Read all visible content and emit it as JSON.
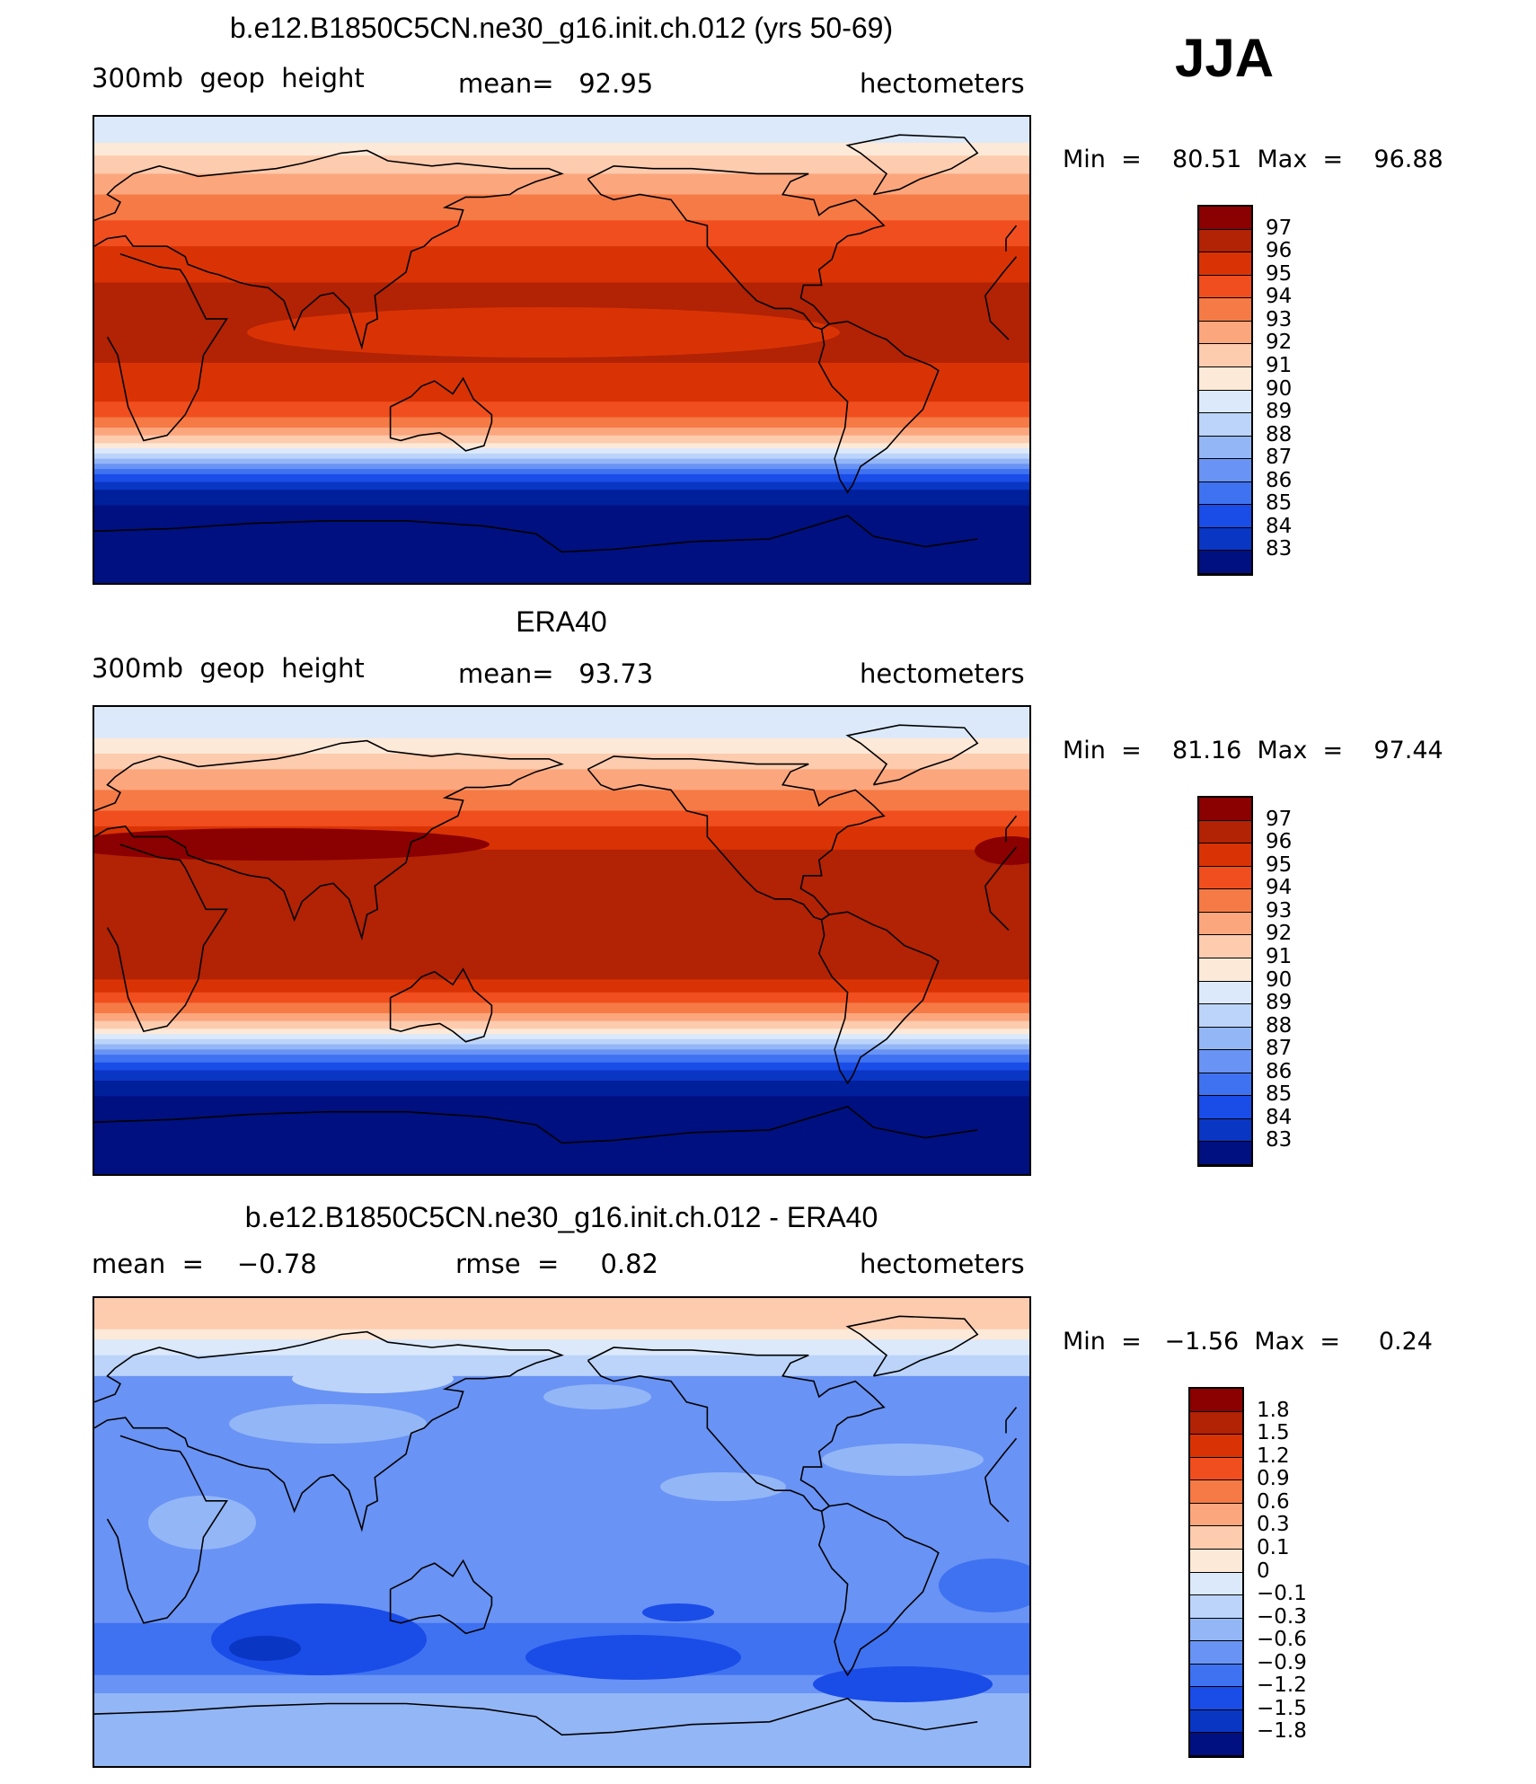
{
  "season": "JJA",
  "panels": [
    {
      "title": "b.e12.B1850C5CN.ne30_g16.init.ch.012 (yrs 50-69)",
      "left_text": "300mb  geop  height",
      "center_text": "mean=   92.95",
      "right_text": "hectometers",
      "minmax": "Min  =    80.51  Max  =    96.88",
      "legend_labels": [
        "97",
        "96",
        "95",
        "94",
        "93",
        "92",
        "91",
        "90",
        "89",
        "88",
        "87",
        "86",
        "85",
        "84",
        "83"
      ]
    },
    {
      "title": "ERA40",
      "left_text": "300mb  geop  height",
      "center_text": "mean=   93.73",
      "right_text": "hectometers",
      "minmax": "Min  =    81.16  Max  =    97.44",
      "legend_labels": [
        "97",
        "96",
        "95",
        "94",
        "93",
        "92",
        "91",
        "90",
        "89",
        "88",
        "87",
        "86",
        "85",
        "84",
        "83"
      ]
    },
    {
      "title": "b.e12.B1850C5CN.ne30_g16.init.ch.012 - ERA40",
      "left_text": "mean  =    −0.78",
      "center_text": "rmse  =     0.82",
      "right_text": "hectometers",
      "minmax": "Min  =   −1.56  Max  =     0.24",
      "legend_labels": [
        "1.8",
        "1.5",
        "1.2",
        "0.9",
        "0.6",
        "0.3",
        "0.1",
        "0",
        "−0.1",
        "−0.3",
        "−0.6",
        "−0.9",
        "−1.2",
        "−1.5",
        "−1.8"
      ]
    }
  ],
  "palette": [
    "#8b0000",
    "#b22205",
    "#d93305",
    "#f04e1e",
    "#f57a45",
    "#fba67d",
    "#fdcbae",
    "#fde9d8",
    "#dbe9fb",
    "#bcd4f9",
    "#93b6f6",
    "#6993f4",
    "#3f72f1",
    "#1a4ce8",
    "#0a36c4",
    "#001f9a",
    "#001080"
  ],
  "legend_colors": [
    "#8b0000",
    "#b22205",
    "#d93305",
    "#f04e1e",
    "#f57a45",
    "#fba67d",
    "#fdcbae",
    "#fde9d8",
    "#dbe9fb",
    "#bcd4f9",
    "#93b6f6",
    "#6993f4",
    "#3f72f1",
    "#1a4ce8",
    "#0a36c4",
    "#001080"
  ]
}
